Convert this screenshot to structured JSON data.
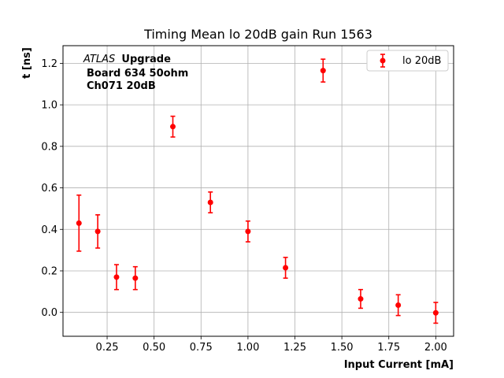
{
  "chart_data": {
    "type": "scatter",
    "title": "Timing Mean lo 20dB gain Run 1563",
    "xlabel": "Input Current [mA]",
    "ylabel": "t [ns]",
    "xlim": [
      0.015,
      2.095
    ],
    "ylim": [
      -0.115,
      1.285
    ],
    "xticks": [
      0.25,
      0.5,
      0.75,
      1.0,
      1.25,
      1.5,
      1.75,
      2.0
    ],
    "xtick_labels": [
      "0.25",
      "0.50",
      "0.75",
      "1.00",
      "1.25",
      "1.50",
      "1.75",
      "2.00"
    ],
    "yticks": [
      0.0,
      0.2,
      0.4,
      0.6,
      0.8,
      1.0,
      1.2
    ],
    "ytick_labels": [
      "0.0",
      "0.2",
      "0.4",
      "0.6",
      "0.8",
      "1.0",
      "1.2"
    ],
    "grid": true,
    "legend_position": "top-right",
    "annotation": {
      "atlas": "ATLAS",
      "upgrade": "Upgrade",
      "line2": "Board 634 50ohm",
      "line3": "Ch071 20dB"
    },
    "series": [
      {
        "name": "lo 20dB",
        "color": "#ff0000",
        "x": [
          0.1,
          0.2,
          0.3,
          0.4,
          0.6,
          0.8,
          1.0,
          1.2,
          1.4,
          1.6,
          1.8,
          2.0
        ],
        "y": [
          0.43,
          0.39,
          0.17,
          0.165,
          0.895,
          0.53,
          0.39,
          0.215,
          1.165,
          0.065,
          0.035,
          -0.002
        ],
        "yerr": [
          0.135,
          0.08,
          0.06,
          0.055,
          0.05,
          0.05,
          0.05,
          0.05,
          0.055,
          0.045,
          0.05,
          0.05
        ]
      }
    ]
  }
}
